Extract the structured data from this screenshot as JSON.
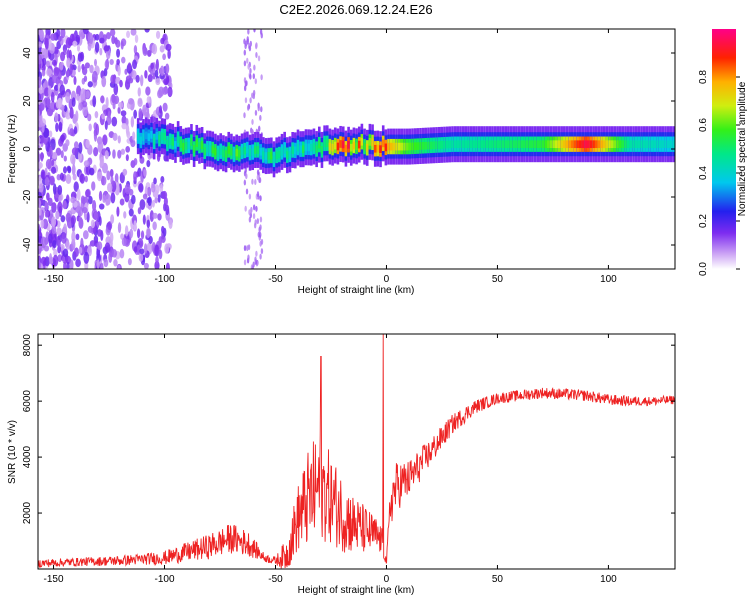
{
  "chart_data": [
    {
      "type": "heatmap",
      "title": "C2E2.2026.069.12.24.E26",
      "xlabel": "Height of straight line (km)",
      "ylabel": "Frequency (Hz)",
      "xlim": [
        -157,
        130
      ],
      "ylim": [
        -50,
        50
      ],
      "xticks": [
        -150,
        -100,
        -50,
        0,
        50,
        100
      ],
      "yticks": [
        -40,
        -20,
        0,
        20,
        40
      ],
      "colorbar": {
        "label": "Normalized spectral amplitude",
        "range": [
          0,
          1
        ],
        "ticks": [
          0.0,
          0.2,
          0.4,
          0.6,
          0.8
        ]
      },
      "ridge": {
        "description_free": true,
        "x": [
          -112,
          -100,
          -90,
          -80,
          -70,
          -60,
          -50,
          -40,
          -30,
          -20,
          -10,
          0,
          10,
          30,
          50,
          70,
          90,
          110,
          130
        ],
        "freq_hz": [
          5,
          4,
          2,
          0,
          -2,
          -1,
          -3,
          0,
          1,
          1,
          2,
          1,
          1,
          2,
          2,
          2,
          2,
          2,
          2
        ],
        "amplitude": [
          0.35,
          0.45,
          0.5,
          0.55,
          0.55,
          0.5,
          0.5,
          0.45,
          0.5,
          0.95,
          0.7,
          0.8,
          0.6,
          0.45,
          0.5,
          0.55,
          0.95,
          0.45,
          0.4
        ]
      }
    },
    {
      "type": "line",
      "xlabel": "Height of straight line (km)",
      "ylabel": "SNR (10 * v/v)",
      "xlim": [
        -157,
        130
      ],
      "ylim": [
        0,
        8400
      ],
      "xticks": [
        -150,
        -100,
        -50,
        0,
        50,
        100
      ],
      "yticks": [
        2000,
        4000,
        6000,
        8000
      ],
      "series": [
        {
          "name": "SNR",
          "color": "#ee2222",
          "x": [
            -157,
            -140,
            -120,
            -110,
            -100,
            -90,
            -80,
            -70,
            -62,
            -55,
            -50,
            -45,
            -40,
            -35,
            -30,
            -25,
            -20,
            -15,
            -10,
            -5,
            -2,
            0,
            2,
            5,
            10,
            20,
            30,
            40,
            50,
            60,
            70,
            80,
            90,
            100,
            110,
            120,
            130
          ],
          "y": [
            200,
            250,
            300,
            350,
            400,
            600,
            800,
            1100,
            900,
            400,
            300,
            500,
            1800,
            2500,
            3000,
            2500,
            2000,
            1600,
            1400,
            1200,
            1000,
            200,
            2500,
            3000,
            3200,
            4200,
            5200,
            5800,
            6100,
            6200,
            6300,
            6250,
            6200,
            6050,
            6000,
            6000,
            6050
          ],
          "noise": [
            150,
            150,
            180,
            200,
            250,
            350,
            450,
            550,
            450,
            150,
            150,
            600,
            1200,
            1800,
            2000,
            1600,
            1400,
            1100,
            900,
            700,
            500,
            100,
            1000,
            900,
            700,
            500,
            350,
            250,
            200,
            200,
            200,
            200,
            200,
            200,
            180,
            160,
            160
          ],
          "spikes": [
            {
              "x": -29.5,
              "y": 7600
            },
            {
              "x": -1.5,
              "y": 8400
            }
          ]
        }
      ]
    }
  ]
}
